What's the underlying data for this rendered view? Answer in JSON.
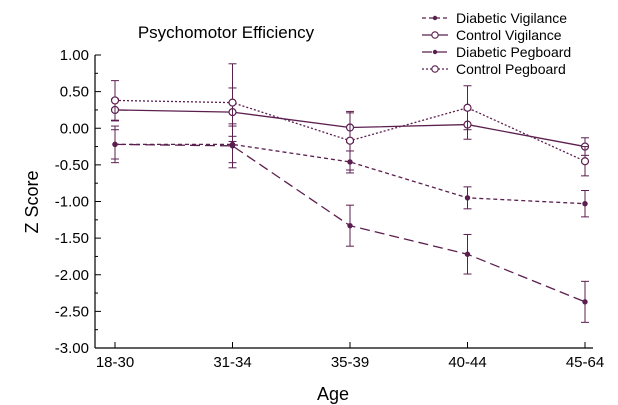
{
  "chart_data": {
    "type": "line",
    "title": "Psychomotor Efficiency",
    "xlabel": "Age",
    "ylabel": "Z Score",
    "categories": [
      "18-30",
      "31-34",
      "35-39",
      "40-44",
      "45-64"
    ],
    "ylim": [
      -3.0,
      1.0
    ],
    "yticks": [
      "1.00",
      "0.50",
      "0.00",
      "-0.50",
      "-1.00",
      "-1.50",
      "-2.00",
      "-2.50",
      "-3.00"
    ],
    "grid": false,
    "legend_position": "top-right",
    "series_color": "#5b1f4f",
    "series": [
      {
        "name": "Diabetic Vigilance",
        "line_style": "short-dash",
        "marker": "filled-dot",
        "values": [
          -0.22,
          -0.22,
          -0.46,
          -0.95,
          -1.03
        ],
        "errors": [
          0.2,
          0.25,
          0.15,
          0.15,
          0.18
        ]
      },
      {
        "name": "Control Vigilance",
        "line_style": "solid",
        "marker": "open-circle",
        "values": [
          0.25,
          0.22,
          0.01,
          0.05,
          -0.25
        ],
        "errors": [
          0.15,
          0.33,
          0.2,
          0.2,
          0.12
        ]
      },
      {
        "name": "Diabetic Pegboard",
        "line_style": "long-dash",
        "marker": "filled-dot",
        "values": [
          -0.22,
          -0.24,
          -1.33,
          -1.72,
          -2.37
        ],
        "errors": [
          0.25,
          0.3,
          0.28,
          0.27,
          0.28
        ]
      },
      {
        "name": "Control Pegboard",
        "line_style": "dotted",
        "marker": "open-circle",
        "values": [
          0.38,
          0.35,
          -0.17,
          0.28,
          -0.45
        ],
        "errors": [
          0.27,
          0.53,
          0.4,
          0.3,
          0.2
        ]
      }
    ]
  }
}
